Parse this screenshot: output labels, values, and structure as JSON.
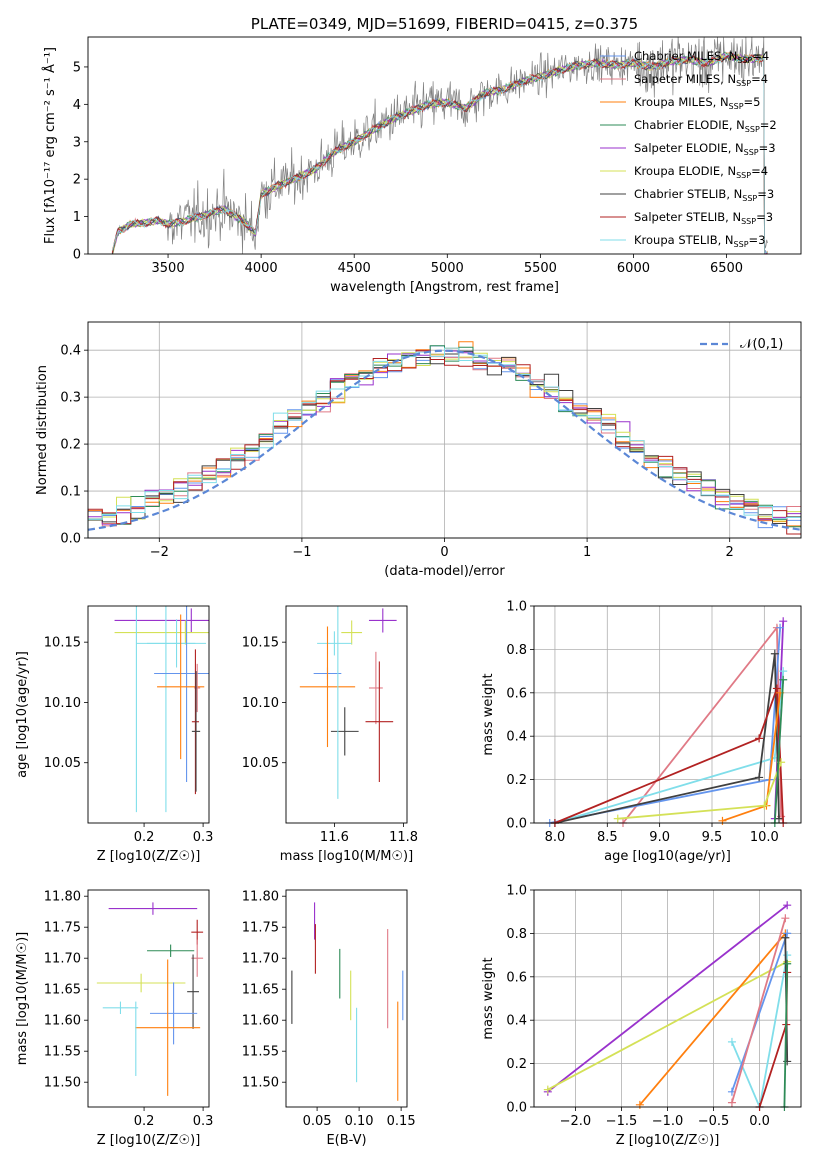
{
  "chart_data": [
    {
      "id": "spectrum",
      "type": "line",
      "title": "PLATE=0349, MJD=51699, FIBERID=0415, z=0.375",
      "xlabel": "wavelength [Angstrom, rest frame]",
      "ylabel": "Flux [fλ10⁻¹⁷ erg cm⁻² s⁻¹ Å⁻¹]",
      "xlim": [
        3070,
        6900
      ],
      "ylim": [
        0,
        5.8
      ],
      "xticks": [
        3500,
        4000,
        4500,
        5000,
        5500,
        6000,
        6500
      ],
      "yticks": [
        0,
        1,
        2,
        3,
        4,
        5
      ],
      "grid": false,
      "legend_position": "right",
      "continuum": {
        "x": [
          3200,
          3230,
          3300,
          3400,
          3450,
          3500,
          3600,
          3700,
          3800,
          3900,
          3970,
          4000,
          4100,
          4200,
          4300,
          4400,
          4500,
          4600,
          4700,
          4800,
          4900,
          5000,
          5100,
          5200,
          5300,
          5400,
          5500,
          5600,
          5700,
          5800,
          5900,
          6000,
          6100,
          6200,
          6300,
          6400,
          6500,
          6600,
          6700
        ],
        "y": [
          0.0,
          0.6,
          0.8,
          0.85,
          0.9,
          0.8,
          0.9,
          1.05,
          1.2,
          0.9,
          0.55,
          1.6,
          1.85,
          2.05,
          2.3,
          2.75,
          3.0,
          3.3,
          3.6,
          3.8,
          4.0,
          4.05,
          3.9,
          4.3,
          4.4,
          4.6,
          4.75,
          4.9,
          5.05,
          5.1,
          5.05,
          5.1,
          5.0,
          5.15,
          5.2,
          5.1,
          5.3,
          5.2,
          5.25
        ]
      },
      "series": [
        {
          "name": "Chabrier MILES, N_SSP=4",
          "label": "Chabrier MILES, N",
          "sub": "SSP",
          "suffix": "=4",
          "color": "#6495ed"
        },
        {
          "name": "Salpeter MILES, N_SSP=4",
          "label": "Salpeter MILES, N",
          "sub": "SSP",
          "suffix": "=4",
          "color": "#e07a86"
        },
        {
          "name": "Kroupa MILES, N_SSP=5",
          "label": "Kroupa MILES, N",
          "sub": "SSP",
          "suffix": "=5",
          "color": "#ff7f0e"
        },
        {
          "name": "Chabrier ELODIE, N_SSP=2",
          "label": "Chabrier ELODIE, N",
          "sub": "SSP",
          "suffix": "=2",
          "color": "#2e8b57"
        },
        {
          "name": "Salpeter ELODIE, N_SSP=3",
          "label": "Salpeter ELODIE, N",
          "sub": "SSP",
          "suffix": "=3",
          "color": "#9932cc"
        },
        {
          "name": "Kroupa ELODIE, N_SSP=4",
          "label": "Kroupa ELODIE, N",
          "sub": "SSP",
          "suffix": "=4",
          "color": "#d4e157"
        },
        {
          "name": "Chabrier STELIB, N_SSP=3",
          "label": "Chabrier STELIB, N",
          "sub": "SSP",
          "suffix": "=3",
          "color": "#404040"
        },
        {
          "name": "Salpeter STELIB, N_SSP=3",
          "label": "Salpeter STELIB, N",
          "sub": "SSP",
          "suffix": "=3",
          "color": "#b22222"
        },
        {
          "name": "Kroupa STELIB, N_SSP=3",
          "label": "Kroupa STELIB, N",
          "sub": "SSP",
          "suffix": "=3",
          "color": "#80deea"
        }
      ]
    },
    {
      "id": "residuals",
      "type": "line",
      "xlabel": "(data-model)/error",
      "ylabel": "Normed distribution",
      "xlim": [
        -2.5,
        2.5
      ],
      "ylim": [
        0,
        0.46
      ],
      "xticks": [
        -2,
        -1,
        0,
        1,
        2
      ],
      "yticks": [
        0.0,
        0.1,
        0.2,
        0.3,
        0.4
      ],
      "grid": true,
      "legend_position": "top-right",
      "gaussian_label": "𝒩(0,1)",
      "gaussian_color": "#5b87d6",
      "histogram_colors": [
        "#6495ed",
        "#e07a86",
        "#ff7f0e",
        "#2e8b57",
        "#9932cc",
        "#d4e157",
        "#404040",
        "#b22222",
        "#80deea"
      ],
      "bin_width": 0.1
    },
    {
      "id": "age-vs-Z",
      "type": "scatter",
      "xlabel": "Z [log10(Z/Z☉)]",
      "ylabel": "age [log10(age/yr)]",
      "xlim": [
        0.105,
        0.31
      ],
      "ylim": [
        10.0,
        10.18
      ],
      "xticks": [
        0.2,
        0.3
      ],
      "yticks": [
        10.05,
        10.1,
        10.15
      ],
      "grid": false,
      "points": [
        {
          "x": 0.28,
          "y": 10.168,
          "xerr": 0.13,
          "yerr": 0.01,
          "color": "#9932cc"
        },
        {
          "x": 0.27,
          "y": 10.158,
          "xerr": 0.12,
          "yerr": 0.01,
          "color": "#d4e157"
        },
        {
          "x": 0.255,
          "y": 10.149,
          "xerr": 0.05,
          "yerr": 0.02,
          "color": "#80deea"
        },
        {
          "x": 0.237,
          "y": 10.149,
          "xerr": 0.05,
          "yerr": 0.14,
          "color": "#80deea"
        },
        {
          "x": 0.187,
          "y": 10.149,
          "xerr": 0.0,
          "yerr": 0.14,
          "color": "#80deea"
        },
        {
          "x": 0.272,
          "y": 10.124,
          "xerr": 0.055,
          "yerr": 0.09,
          "color": "#6495ed"
        },
        {
          "x": 0.262,
          "y": 10.113,
          "xerr": 0.04,
          "yerr": 0.06,
          "color": "#ff7f0e"
        },
        {
          "x": 0.29,
          "y": 10.112,
          "xerr": 0.005,
          "yerr": 0.02,
          "color": "#e07a86"
        },
        {
          "x": 0.287,
          "y": 10.084,
          "xerr": 0.006,
          "yerr": 0.06,
          "color": "#b22222"
        },
        {
          "x": 0.288,
          "y": 10.076,
          "xerr": 0.007,
          "yerr": 0.05,
          "color": "#404040"
        }
      ]
    },
    {
      "id": "age-vs-mass",
      "type": "scatter",
      "xlabel": "mass [log10(M/M☉)]",
      "ylabel": "",
      "xlim": [
        11.46,
        11.81
      ],
      "ylim": [
        10.0,
        10.18
      ],
      "xticks": [
        11.6,
        11.8
      ],
      "yticks": [
        10.05,
        10.1,
        10.15
      ],
      "grid": false,
      "points": [
        {
          "x": 11.74,
          "y": 10.168,
          "xerr": 0.04,
          "yerr": 0.01,
          "color": "#9932cc"
        },
        {
          "x": 11.65,
          "y": 10.158,
          "xerr": 0.03,
          "yerr": 0.01,
          "color": "#d4e157"
        },
        {
          "x": 11.6,
          "y": 10.149,
          "xerr": 0.05,
          "yerr": 0.01,
          "color": "#80deea"
        },
        {
          "x": 11.58,
          "y": 10.124,
          "xerr": 0.04,
          "yerr": 0.005,
          "color": "#6495ed"
        },
        {
          "x": 11.58,
          "y": 10.113,
          "xerr": 0.08,
          "yerr": 0.05,
          "color": "#ff7f0e"
        },
        {
          "x": 11.72,
          "y": 10.112,
          "xerr": 0.02,
          "yerr": 0.03,
          "color": "#e07a86"
        },
        {
          "x": 11.73,
          "y": 10.084,
          "xerr": 0.04,
          "yerr": 0.05,
          "color": "#b22222"
        },
        {
          "x": 11.63,
          "y": 10.076,
          "xerr": 0.04,
          "yerr": 0.02,
          "color": "#404040"
        },
        {
          "x": 11.61,
          "y": 10.14,
          "xerr": 0.0,
          "yerr": 0.12,
          "color": "#80deea"
        }
      ]
    },
    {
      "id": "weight-vs-age",
      "type": "line",
      "xlabel": "age  [log10(age/yr)]",
      "ylabel": "mass weight",
      "xlim": [
        7.8,
        10.35
      ],
      "ylim": [
        0,
        1.0
      ],
      "xticks": [
        8.0,
        8.5,
        9.0,
        9.5,
        10.0
      ],
      "yticks": [
        0.0,
        0.2,
        0.4,
        0.6,
        0.8,
        1.0
      ],
      "grid": true,
      "series": [
        {
          "color": "#e07a86",
          "x": [
            8.65,
            10.12,
            10.16
          ],
          "y": [
            0.0,
            0.9,
            0.03
          ]
        },
        {
          "color": "#9932cc",
          "x": [
            10.1,
            10.18
          ],
          "y": [
            0.02,
            0.93
          ]
        },
        {
          "color": "#6495ed",
          "x": [
            7.95,
            10.05,
            10.15
          ],
          "y": [
            0.0,
            0.2,
            0.9
          ]
        },
        {
          "color": "#80deea",
          "x": [
            8.0,
            10.1,
            10.18
          ],
          "y": [
            0.0,
            0.3,
            0.7
          ]
        },
        {
          "color": "#404040",
          "x": [
            8.0,
            9.95,
            10.1,
            10.14
          ],
          "y": [
            0.0,
            0.21,
            0.78,
            0.02
          ]
        },
        {
          "color": "#b22222",
          "x": [
            8.0,
            9.95,
            10.12,
            10.18
          ],
          "y": [
            0.0,
            0.39,
            0.62,
            0.0
          ]
        },
        {
          "color": "#ff7f0e",
          "x": [
            9.6,
            10.02,
            10.15
          ],
          "y": [
            0.01,
            0.08,
            0.6
          ]
        },
        {
          "color": "#d4e157",
          "x": [
            8.6,
            10.0,
            10.16
          ],
          "y": [
            0.02,
            0.08,
            0.28
          ]
        },
        {
          "color": "#2e8b57",
          "x": [
            10.1,
            10.18
          ],
          "y": [
            0.0,
            0.66
          ]
        }
      ]
    },
    {
      "id": "mass-vs-Z",
      "type": "scatter",
      "xlabel": "Z [log10(Z/Z☉)]",
      "ylabel": "mass [log10(M/M☉)]",
      "xlim": [
        0.105,
        0.31
      ],
      "ylim": [
        11.46,
        11.81
      ],
      "xticks": [
        0.2,
        0.3
      ],
      "yticks": [
        11.5,
        11.55,
        11.6,
        11.65,
        11.7,
        11.75,
        11.8
      ],
      "grid": false,
      "points": [
        {
          "x": 0.215,
          "y": 11.78,
          "xerr": 0.075,
          "yerr": 0.01,
          "color": "#9932cc"
        },
        {
          "x": 0.29,
          "y": 11.742,
          "xerr": 0.01,
          "yerr": 0.02,
          "color": "#b22222"
        },
        {
          "x": 0.245,
          "y": 11.712,
          "xerr": 0.04,
          "yerr": 0.01,
          "color": "#2e8b57"
        },
        {
          "x": 0.29,
          "y": 11.7,
          "xerr": 0.01,
          "yerr": 0.03,
          "color": "#e07a86"
        },
        {
          "x": 0.195,
          "y": 11.66,
          "xerr": 0.075,
          "yerr": 0.015,
          "color": "#d4e157"
        },
        {
          "x": 0.283,
          "y": 11.646,
          "xerr": 0.01,
          "yerr": 0.06,
          "color": "#404040"
        },
        {
          "x": 0.16,
          "y": 11.62,
          "xerr": 0.03,
          "yerr": 0.01,
          "color": "#80deea"
        },
        {
          "x": 0.25,
          "y": 11.611,
          "xerr": 0.04,
          "yerr": 0.05,
          "color": "#6495ed"
        },
        {
          "x": 0.24,
          "y": 11.588,
          "xerr": 0.055,
          "yerr": 0.11,
          "color": "#ff7f0e"
        },
        {
          "x": 0.186,
          "y": 11.57,
          "xerr": 0.0,
          "yerr": 0.06,
          "color": "#80deea"
        }
      ]
    },
    {
      "id": "mass-vs-EBV",
      "type": "scatter",
      "xlabel": "E(B-V)",
      "ylabel": "",
      "xlim": [
        0.013,
        0.157
      ],
      "ylim": [
        11.46,
        11.81
      ],
      "xticks": [
        0.05,
        0.1,
        0.15
      ],
      "yticks": [
        11.5,
        11.55,
        11.6,
        11.65,
        11.7,
        11.75,
        11.8
      ],
      "grid": false,
      "points": [
        {
          "x": 0.047,
          "y": 11.76,
          "xerr": 0.0,
          "yerr": 0.03,
          "color": "#9932cc"
        },
        {
          "x": 0.048,
          "y": 11.715,
          "xerr": 0.0,
          "yerr": 0.04,
          "color": "#b22222"
        },
        {
          "x": 0.02,
          "y": 11.637,
          "xerr": 0.0,
          "yerr": 0.043,
          "color": "#404040"
        },
        {
          "x": 0.077,
          "y": 11.675,
          "xerr": 0.0,
          "yerr": 0.04,
          "color": "#2e8b57"
        },
        {
          "x": 0.09,
          "y": 11.64,
          "xerr": 0.0,
          "yerr": 0.04,
          "color": "#d4e157"
        },
        {
          "x": 0.097,
          "y": 11.56,
          "xerr": 0.0,
          "yerr": 0.06,
          "color": "#80deea"
        },
        {
          "x": 0.134,
          "y": 11.667,
          "xerr": 0.0,
          "yerr": 0.08,
          "color": "#e07a86"
        },
        {
          "x": 0.146,
          "y": 11.55,
          "xerr": 0.0,
          "yerr": 0.08,
          "color": "#ff7f0e"
        },
        {
          "x": 0.152,
          "y": 11.64,
          "xerr": 0.0,
          "yerr": 0.04,
          "color": "#6495ed"
        }
      ]
    },
    {
      "id": "weight-vs-Z",
      "type": "line",
      "xlabel": "Z [log10(Z/Z☉)]",
      "ylabel": "mass weight",
      "xlim": [
        -2.45,
        0.45
      ],
      "ylim": [
        0,
        1.0
      ],
      "xticks": [
        -2.0,
        -1.5,
        -1.0,
        -0.5,
        0.0
      ],
      "yticks": [
        0.0,
        0.2,
        0.4,
        0.6,
        0.8,
        1.0
      ],
      "grid": true,
      "series": [
        {
          "color": "#9932cc",
          "x": [
            -2.3,
            0.3
          ],
          "y": [
            0.07,
            0.93
          ]
        },
        {
          "color": "#d4e157",
          "x": [
            -2.3,
            0.3
          ],
          "y": [
            0.08,
            0.67
          ]
        },
        {
          "color": "#ff7f0e",
          "x": [
            -1.3,
            0.28
          ],
          "y": [
            0.01,
            0.8
          ]
        },
        {
          "color": "#80deea",
          "x": [
            -0.3,
            0.0,
            0.3
          ],
          "y": [
            0.3,
            0.0,
            0.7
          ]
        },
        {
          "color": "#6495ed",
          "x": [
            -0.3,
            0.3
          ],
          "y": [
            0.07,
            0.8
          ]
        },
        {
          "color": "#e07a86",
          "x": [
            -0.3,
            0.28
          ],
          "y": [
            0.02,
            0.87
          ]
        },
        {
          "color": "#404040",
          "x": [
            0.28,
            0.3
          ],
          "y": [
            0.78,
            0.21
          ]
        },
        {
          "color": "#b22222",
          "x": [
            0.0,
            0.29,
            0.3
          ],
          "y": [
            0.0,
            0.38,
            0.62
          ]
        },
        {
          "color": "#2e8b57",
          "x": [
            0.27,
            0.3
          ],
          "y": [
            0.0,
            0.66
          ]
        }
      ]
    }
  ]
}
